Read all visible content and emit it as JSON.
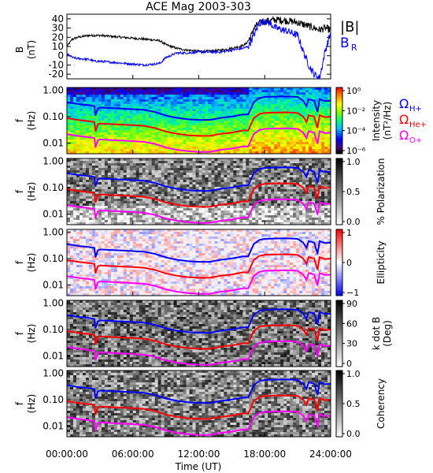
{
  "chart_data": {
    "title": "ACE Mag 2003-303",
    "type": "line",
    "xlabel": "Time (UT)",
    "xticks": [
      "00:00:00",
      "06:00:00",
      "12:00:00",
      "18:00:00",
      "24:00:00"
    ],
    "xlim_hours": [
      0,
      24
    ],
    "panels": [
      {
        "name": "magnetic-field",
        "type": "line",
        "ylabel": "B",
        "yunit": "(nT)",
        "ylim": [
          -25,
          45
        ],
        "yticks": [
          "40",
          "30",
          "20",
          "10",
          "0",
          "-10",
          "-20"
        ],
        "ytick_values": [
          40,
          30,
          20,
          10,
          0,
          -10,
          -20
        ],
        "legend": [
          "|B|",
          "B",
          "R"
        ],
        "series": [
          {
            "name": "|B|",
            "color": "#000000",
            "x": [
              0,
              0.5,
              1,
              2,
              3,
              4,
              5,
              6,
              7,
              8,
              8.5,
              9,
              10,
              11,
              12,
              13,
              14,
              15,
              16,
              16.3,
              16.8,
              17,
              17.5,
              18,
              18.5,
              19,
              20,
              21,
              21.5,
              22,
              22.5,
              23,
              23.5,
              24
            ],
            "y": [
              10,
              18,
              20,
              22,
              22,
              21,
              20,
              19,
              18,
              17,
              16,
              12,
              8,
              6,
              5,
              5,
              6,
              8,
              11,
              13,
              22,
              30,
              35,
              37,
              38,
              39,
              38,
              36,
              34,
              32,
              30,
              28,
              30,
              28
            ]
          },
          {
            "name": "B_R",
            "color": "#0000ff",
            "x": [
              0,
              0.5,
              1,
              2,
              2.5,
              3,
              4,
              5,
              6,
              7,
              8,
              8.5,
              9,
              10,
              11,
              12,
              13,
              14,
              15,
              16,
              16.5,
              17,
              17.5,
              18,
              18.5,
              19,
              20,
              21,
              21.5,
              22,
              22.5,
              23,
              23.5,
              24
            ],
            "y": [
              2,
              -2,
              -3,
              -4,
              -6,
              -6,
              -7,
              -8,
              -9,
              -10,
              -9,
              -8,
              -2,
              3,
              3,
              4,
              4,
              4,
              6,
              8,
              10,
              22,
              35,
              38,
              35,
              30,
              27,
              22,
              5,
              -10,
              -20,
              -24,
              5,
              25
            ]
          }
        ]
      },
      {
        "name": "intensity",
        "type": "heatmap",
        "ylabel": "f",
        "yunit": "(Hz)",
        "colorbar_label": "Intensity",
        "colorbar_unit": "(nT²/Hz)",
        "colorbar_ticks": [
          "10⁰",
          "10⁻²",
          "10⁻⁴",
          "10⁻⁶"
        ],
        "colorbar_range": [
          -6.5,
          1.2
        ],
        "colormap": "rainbow",
        "legend": [
          "Ω",
          "H+",
          "Ω",
          "He+",
          "Ω",
          "O+"
        ]
      },
      {
        "name": "polarization",
        "type": "heatmap",
        "ylabel": "f",
        "yunit": "(Hz)",
        "colorbar_label": "% Polarization",
        "colorbar_ticks": [
          "1.0",
          "0.5",
          "0.0"
        ],
        "colorbar_range": [
          0,
          1
        ],
        "colormap": "gray_reversed"
      },
      {
        "name": "ellipticity",
        "type": "heatmap",
        "ylabel": "f",
        "yunit": "(Hz)",
        "colorbar_label": "Ellipticity",
        "colorbar_ticks": [
          "1",
          "0",
          "−1"
        ],
        "colorbar_range": [
          -1,
          1
        ],
        "colormap": "blue_white_red"
      },
      {
        "name": "wave-normal-angle",
        "type": "heatmap",
        "ylabel": "f",
        "yunit": "(Hz)",
        "colorbar_label": "k dot B",
        "colorbar_unit": "(Deg)",
        "colorbar_ticks": [
          "90",
          "60",
          "30",
          "0"
        ],
        "colorbar_range": [
          0,
          90
        ],
        "colormap": "gray_reversed"
      },
      {
        "name": "coherency",
        "type": "heatmap",
        "ylabel": "f",
        "yunit": "(Hz)",
        "colorbar_label": "Coherency",
        "colorbar_ticks": [
          "1.0",
          "0.5",
          "0.0"
        ],
        "colorbar_range": [
          0,
          1
        ],
        "colormap": "gray_reversed"
      }
    ],
    "freq_yticks": [
      "1.00",
      "0.10",
      "0.01"
    ],
    "freq_ytick_values": [
      1.0,
      0.1,
      0.01
    ],
    "freq_ylim": [
      0.004,
      1.25
    ],
    "freq_scale": "log",
    "gyrofrequency_lines": {
      "x_hours": [
        0,
        1,
        2,
        2.5,
        2.6,
        2.8,
        3,
        4,
        5,
        6,
        7,
        8,
        9,
        10,
        11,
        12,
        13,
        14,
        15,
        16,
        16.5,
        17,
        17.5,
        18,
        19,
        20,
        21,
        21.5,
        21.8,
        22,
        22.5,
        22.8,
        23,
        23.5,
        24
      ],
      "H+_hz": [
        0.35,
        0.3,
        0.27,
        0.25,
        0.11,
        0.2,
        0.22,
        0.21,
        0.2,
        0.19,
        0.18,
        0.15,
        0.11,
        0.09,
        0.08,
        0.075,
        0.075,
        0.09,
        0.1,
        0.12,
        0.12,
        0.35,
        0.5,
        0.55,
        0.57,
        0.58,
        0.55,
        0.4,
        0.25,
        0.45,
        0.4,
        0.15,
        0.45,
        0.38,
        0.4
      ],
      "colors": {
        "H+": "#0000ff",
        "He+": "#ff0000",
        "O+": "#ff00ff"
      },
      "divisors": {
        "H+": 1,
        "He+": 4,
        "O+": 16
      }
    }
  }
}
